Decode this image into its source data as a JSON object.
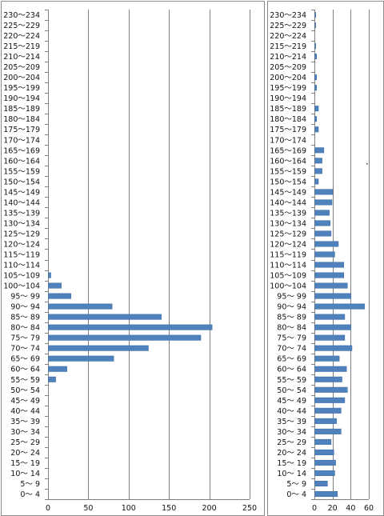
{
  "chart_data": [
    {
      "type": "bar",
      "orientation": "horizontal",
      "categories": [
        "0〜 4",
        "5〜 9",
        "10〜 14",
        "15〜 19",
        "20〜 24",
        "25〜 29",
        "30〜 34",
        "35〜 39",
        "40〜 44",
        "45〜 49",
        "50〜 54",
        "55〜 59",
        "60〜 64",
        "65〜 69",
        "70〜 74",
        "75〜 79",
        "80〜 84",
        "85〜 89",
        "90〜 94",
        "95〜 99",
        "100〜104",
        "105〜109",
        "110〜114",
        "115〜119",
        "120〜124",
        "125〜129",
        "130〜134",
        "135〜139",
        "140〜144",
        "145〜149",
        "150〜154",
        "155〜159",
        "160〜164",
        "165〜169",
        "170〜174",
        "175〜179",
        "180〜184",
        "185〜189",
        "190〜194",
        "195〜199",
        "200〜204",
        "205〜209",
        "210〜214",
        "215〜219",
        "220〜224",
        "225〜229",
        "230〜234"
      ],
      "values": [
        0,
        0,
        0,
        0,
        0,
        0,
        0,
        0,
        0,
        0,
        0,
        9,
        23,
        81,
        124,
        189,
        203,
        140,
        79,
        28,
        16,
        3,
        0,
        0,
        0,
        0,
        0,
        0,
        0,
        0,
        0,
        0,
        0,
        0,
        0,
        0,
        0,
        0,
        0,
        0,
        0,
        0,
        0,
        0,
        0,
        0,
        0
      ],
      "xlim": [
        0,
        250
      ],
      "xticks": [
        "0",
        "50",
        "100",
        "150",
        "200",
        "250"
      ],
      "grid": true,
      "bar_color": "#4f81bd"
    },
    {
      "type": "bar",
      "orientation": "horizontal",
      "categories": [
        "0〜 4",
        "5〜 9",
        "10〜 14",
        "15〜 19",
        "20〜 24",
        "25〜 29",
        "30〜 34",
        "35〜 39",
        "40〜 44",
        "45〜 49",
        "50〜 54",
        "55〜 59",
        "60〜 64",
        "65〜 69",
        "70〜 74",
        "75〜 79",
        "80〜 84",
        "85〜 89",
        "90〜 94",
        "95〜 99",
        "100〜104",
        "105〜109",
        "110〜114",
        "115〜119",
        "120〜124",
        "125〜129",
        "130〜134",
        "135〜139",
        "140〜144",
        "145〜149",
        "150〜154",
        "155〜159",
        "160〜164",
        "165〜169",
        "170〜174",
        "175〜179",
        "180〜184",
        "185〜189",
        "190〜194",
        "195〜199",
        "200〜204",
        "205〜209",
        "210〜214",
        "215〜219",
        "220〜224",
        "225〜229",
        "230〜234"
      ],
      "values": [
        25,
        14,
        22,
        23,
        21,
        18,
        29,
        24,
        29,
        33,
        36,
        30,
        35,
        27,
        41,
        33,
        40,
        33,
        55,
        40,
        36,
        32,
        32,
        22,
        26,
        18,
        17,
        16,
        19,
        20,
        4,
        8,
        8,
        10,
        0,
        4,
        2,
        4,
        0,
        2,
        2,
        0,
        2,
        1,
        0,
        1,
        1
      ],
      "xlim": [
        0,
        60
      ],
      "xticks": [
        "0",
        "20",
        "40",
        "60"
      ],
      "grid": true,
      "bar_color": "#4f81bd"
    }
  ]
}
